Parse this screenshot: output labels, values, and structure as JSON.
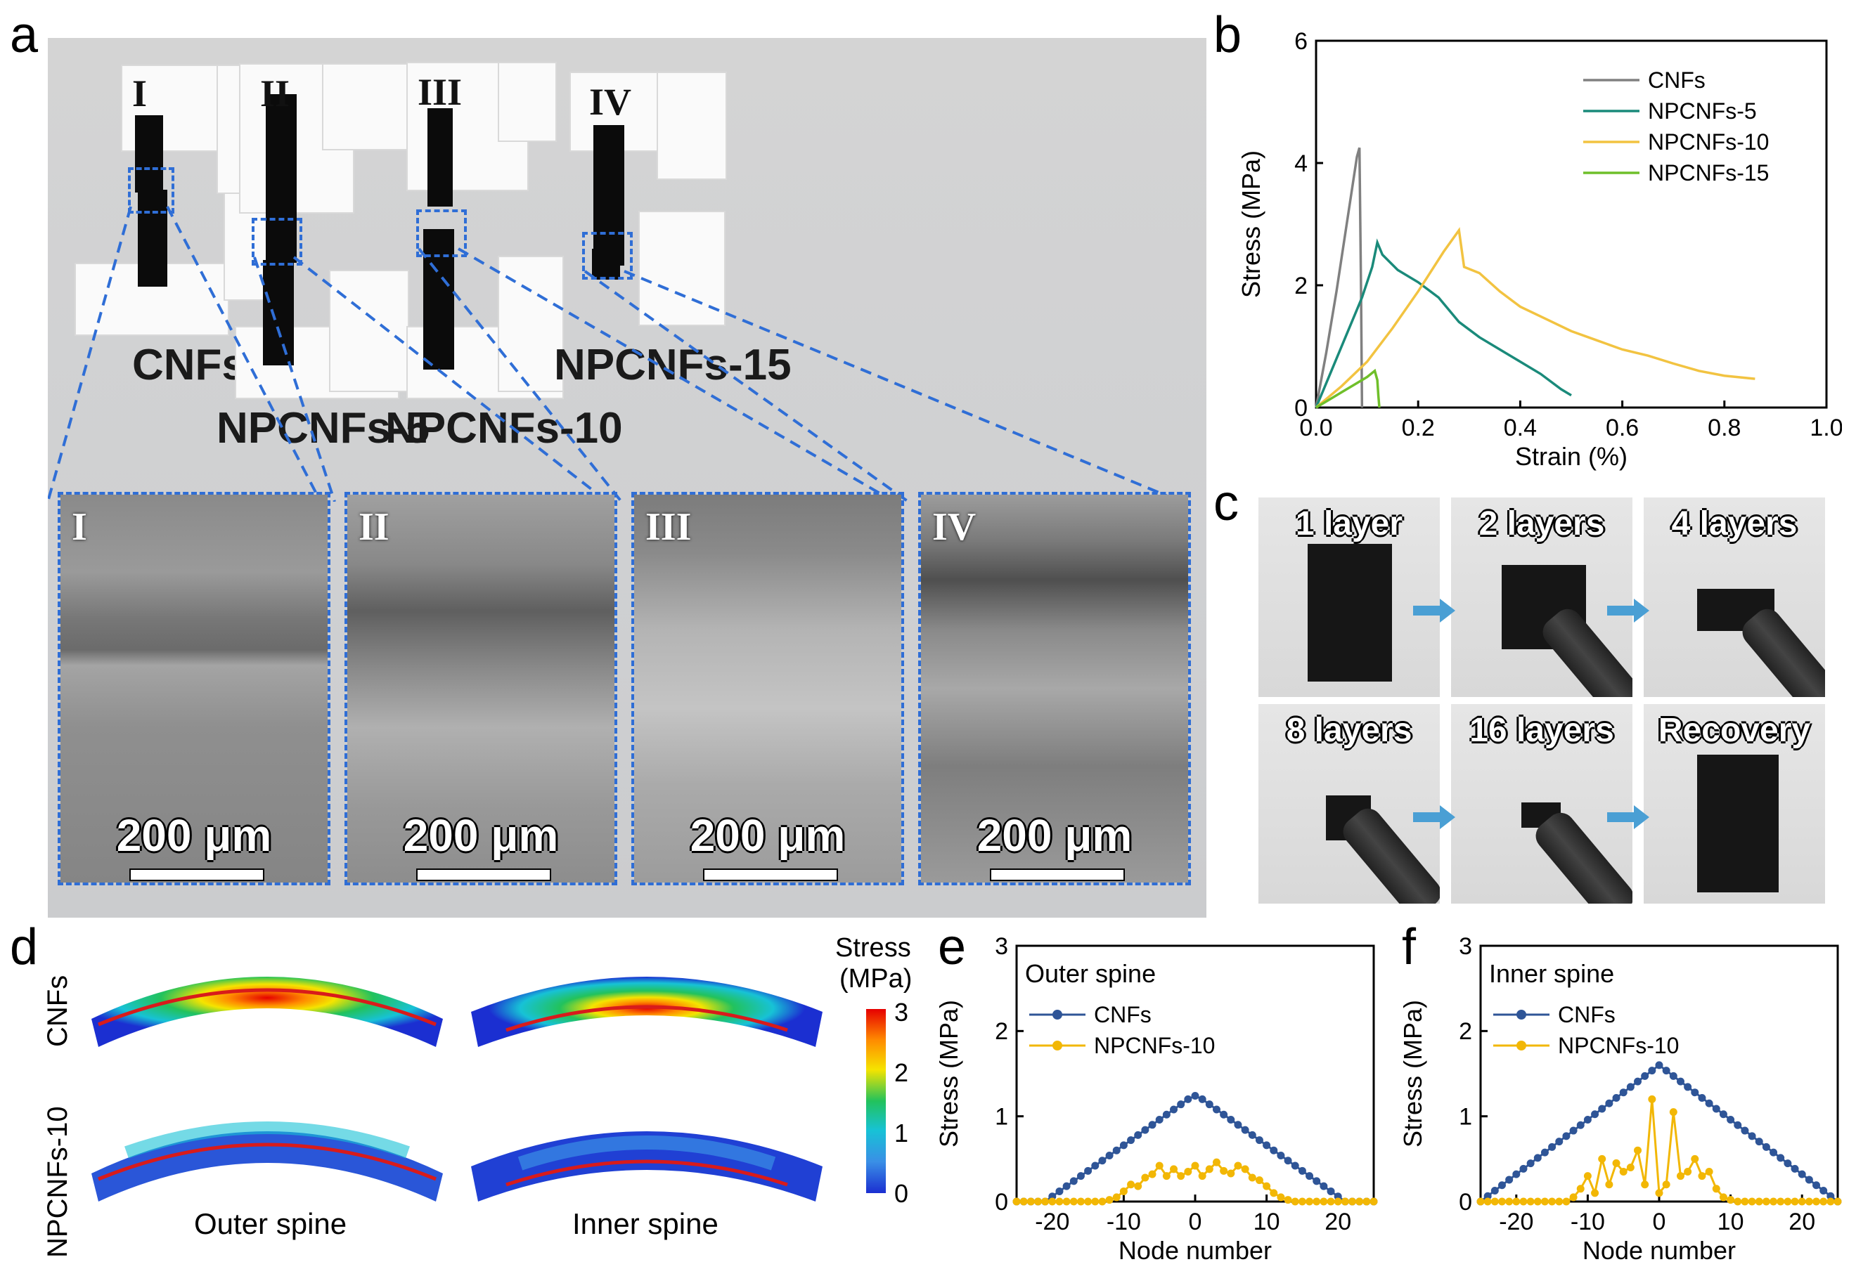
{
  "panel_labels": {
    "a": "a",
    "b": "b",
    "c": "c",
    "d": "d",
    "e": "e",
    "f": "f"
  },
  "panel_a": {
    "samples": [
      {
        "roman": "I",
        "label": "CNFs"
      },
      {
        "roman": "II",
        "label": "NPCNFs-5"
      },
      {
        "roman": "III",
        "label": "NPCNFs-10"
      },
      {
        "roman": "IV",
        "label": "NPCNFs-15"
      }
    ],
    "sem": [
      {
        "roman": "I",
        "scale": "200 μm"
      },
      {
        "roman": "II",
        "scale": "200 μm"
      },
      {
        "roman": "III",
        "scale": "200 μm"
      },
      {
        "roman": "IV",
        "scale": "200 μm"
      }
    ]
  },
  "panel_c": {
    "photos": [
      {
        "label": "1 layer"
      },
      {
        "label": "2 layers"
      },
      {
        "label": "4 layers"
      },
      {
        "label": "8 layers"
      },
      {
        "label": "16 layers"
      },
      {
        "label": "Recovery"
      }
    ]
  },
  "panel_d": {
    "row_labels": [
      "CNFs",
      "NPCNFs-10"
    ],
    "col_labels": [
      "Outer spine",
      "Inner spine"
    ],
    "colorbar": {
      "title": "Stress",
      "unit": "(MPa)",
      "ticks": [
        "3",
        "2",
        "1",
        "0"
      ]
    }
  },
  "chart_data": [
    {
      "panel": "b",
      "type": "line",
      "title": "",
      "xlabel": "Strain (%)",
      "ylabel": "Stress (MPa)",
      "xlim": [
        0,
        1.0
      ],
      "ylim": [
        0,
        6
      ],
      "xticks": [
        "0.0",
        "0.2",
        "0.4",
        "0.6",
        "0.8",
        "1.0"
      ],
      "yticks": [
        "0",
        "2",
        "4",
        "6"
      ],
      "legend_position": "top-right",
      "series": [
        {
          "name": "CNFs",
          "color": "#808080",
          "x": [
            0,
            0.02,
            0.04,
            0.06,
            0.08,
            0.085,
            0.088,
            0.09
          ],
          "y": [
            0,
            0.9,
            1.9,
            3.0,
            4.1,
            4.25,
            2.0,
            0
          ]
        },
        {
          "name": "NPCNFs-5",
          "color": "#1a8a7a",
          "x": [
            0,
            0.03,
            0.06,
            0.09,
            0.11,
            0.12,
            0.13,
            0.16,
            0.2,
            0.24,
            0.28,
            0.32,
            0.36,
            0.4,
            0.44,
            0.48,
            0.5
          ],
          "y": [
            0,
            0.6,
            1.2,
            1.8,
            2.3,
            2.7,
            2.5,
            2.25,
            2.05,
            1.8,
            1.4,
            1.15,
            0.95,
            0.75,
            0.55,
            0.3,
            0.2
          ]
        },
        {
          "name": "NPCNFs-10",
          "color": "#f2c341",
          "x": [
            0,
            0.05,
            0.1,
            0.15,
            0.2,
            0.25,
            0.28,
            0.29,
            0.32,
            0.36,
            0.4,
            0.45,
            0.5,
            0.55,
            0.6,
            0.65,
            0.7,
            0.75,
            0.8,
            0.86
          ],
          "y": [
            0,
            0.35,
            0.75,
            1.3,
            1.9,
            2.55,
            2.9,
            2.3,
            2.2,
            1.9,
            1.65,
            1.45,
            1.25,
            1.1,
            0.95,
            0.85,
            0.72,
            0.6,
            0.52,
            0.47
          ]
        },
        {
          "name": "NPCNFs-15",
          "color": "#6fbf2a",
          "x": [
            0,
            0.04,
            0.08,
            0.1,
            0.115,
            0.12,
            0.122,
            0.124
          ],
          "y": [
            0,
            0.2,
            0.4,
            0.5,
            0.6,
            0.45,
            0.2,
            0
          ]
        }
      ]
    },
    {
      "panel": "e",
      "type": "line",
      "title": "",
      "annotation": "Outer spine",
      "xlabel": "Node number",
      "ylabel": "Stress (MPa)",
      "xlim": [
        -25,
        25
      ],
      "ylim": [
        0,
        3
      ],
      "xticks": [
        "-20",
        "-10",
        "0",
        "10",
        "20"
      ],
      "yticks": [
        "0",
        "1",
        "2",
        "3"
      ],
      "legend_position": "top-left",
      "series": [
        {
          "name": "CNFs",
          "color": "#2f5597",
          "x_start": -25,
          "x_step": 1,
          "values": [
            0,
            0,
            0,
            0,
            0,
            0.06,
            0.12,
            0.18,
            0.24,
            0.3,
            0.36,
            0.42,
            0.48,
            0.54,
            0.6,
            0.66,
            0.72,
            0.78,
            0.84,
            0.9,
            0.96,
            1.02,
            1.08,
            1.14,
            1.2,
            1.24,
            1.2,
            1.14,
            1.08,
            1.02,
            0.96,
            0.9,
            0.84,
            0.78,
            0.72,
            0.66,
            0.6,
            0.54,
            0.48,
            0.42,
            0.36,
            0.3,
            0.24,
            0.18,
            0.12,
            0.06,
            0,
            0,
            0,
            0,
            0
          ]
        },
        {
          "name": "NPCNFs-10",
          "color": "#f2b705",
          "x_start": -25,
          "x_step": 1,
          "values": [
            0,
            0,
            0,
            0,
            0,
            0,
            0,
            0,
            0,
            0,
            0,
            0,
            0,
            0.02,
            0.05,
            0.12,
            0.2,
            0.18,
            0.28,
            0.32,
            0.42,
            0.3,
            0.38,
            0.3,
            0.35,
            0.42,
            0.3,
            0.38,
            0.46,
            0.36,
            0.33,
            0.42,
            0.38,
            0.28,
            0.25,
            0.18,
            0.1,
            0.05,
            0.02,
            0,
            0,
            0,
            0,
            0,
            0,
            0,
            0,
            0,
            0,
            0,
            0
          ]
        }
      ]
    },
    {
      "panel": "f",
      "type": "line",
      "title": "",
      "annotation": "Inner spine",
      "xlabel": "Node number",
      "ylabel": "Stress (MPa)",
      "xlim": [
        -25,
        25
      ],
      "ylim": [
        0,
        3
      ],
      "xticks": [
        "-20",
        "-10",
        "0",
        "10",
        "20"
      ],
      "yticks": [
        "0",
        "1",
        "2",
        "3"
      ],
      "legend_position": "top-left",
      "series": [
        {
          "name": "CNFs",
          "color": "#2f5597",
          "x_start": -25,
          "x_step": 1,
          "values": [
            0,
            0.064,
            0.128,
            0.192,
            0.256,
            0.32,
            0.384,
            0.448,
            0.512,
            0.576,
            0.64,
            0.704,
            0.768,
            0.832,
            0.896,
            0.96,
            1.024,
            1.088,
            1.152,
            1.216,
            1.28,
            1.344,
            1.408,
            1.472,
            1.536,
            1.6,
            1.536,
            1.472,
            1.408,
            1.344,
            1.28,
            1.216,
            1.152,
            1.088,
            1.024,
            0.96,
            0.896,
            0.832,
            0.768,
            0.704,
            0.64,
            0.576,
            0.512,
            0.448,
            0.384,
            0.32,
            0.256,
            0.192,
            0.128,
            0.064,
            0
          ]
        },
        {
          "name": "NPCNFs-10",
          "color": "#f2b705",
          "x_start": -25,
          "x_step": 1,
          "values": [
            0,
            0,
            0,
            0,
            0,
            0,
            0,
            0,
            0,
            0,
            0,
            0,
            0,
            0.05,
            0.15,
            0.3,
            0.1,
            0.5,
            0.2,
            0.45,
            0.35,
            0.4,
            0.6,
            0.2,
            1.2,
            0.1,
            0.2,
            1.05,
            0.3,
            0.35,
            0.5,
            0.3,
            0.35,
            0.15,
            0.05,
            0.02,
            0,
            0,
            0,
            0,
            0,
            0,
            0,
            0,
            0,
            0,
            0,
            0,
            0,
            0,
            0
          ]
        }
      ]
    }
  ],
  "fem_colors": {
    "red": "#e60000",
    "orange": "#ff8c00",
    "yellow": "#f5e400",
    "green": "#22c25c",
    "cyan": "#17c2d6",
    "lightblue": "#3a8fe6",
    "blue": "#1b2fd1"
  }
}
